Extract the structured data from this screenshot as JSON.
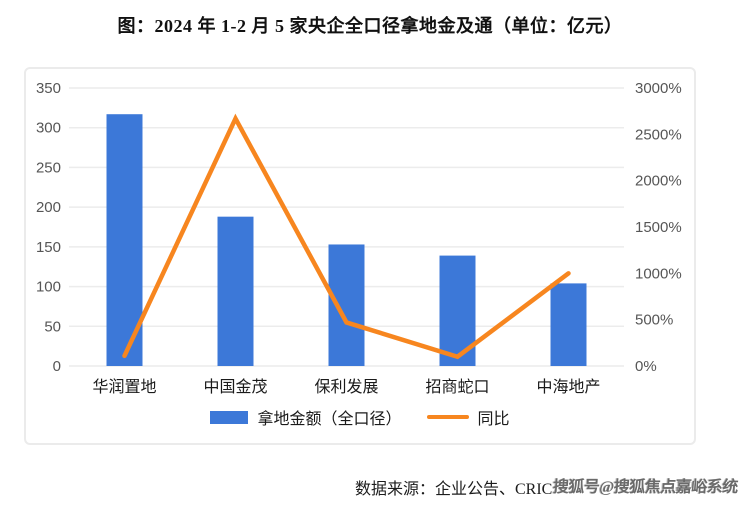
{
  "title": "图：2024 年 1-2 月 5 家央企全口径拿地金及通（单位：亿元）",
  "chart_data": {
    "type": "bar+line",
    "categories": [
      "华润置地",
      "中国金茂",
      "保利发展",
      "招商蛇口",
      "中海地产"
    ],
    "series": [
      {
        "name": "拿地金额（全口径）",
        "type": "bar",
        "axis": "left",
        "values": [
          317,
          188,
          153,
          139,
          104
        ],
        "color": "#3C78D8"
      },
      {
        "name": "同比",
        "type": "line",
        "axis": "right",
        "values": [
          110,
          2670,
          470,
          100,
          1000
        ],
        "color": "#F7861F"
      }
    ],
    "left_axis": {
      "min": 0,
      "max": 350,
      "step": 50,
      "tick_labels": [
        "0",
        "50",
        "100",
        "150",
        "200",
        "250",
        "300",
        "350"
      ]
    },
    "right_axis": {
      "min": 0,
      "max": 3000,
      "step": 500,
      "tick_labels": [
        "0%",
        "500%",
        "1000%",
        "1500%",
        "2000%",
        "2500%",
        "3000%"
      ]
    },
    "grid": true,
    "legend_position": "bottom"
  },
  "legend": {
    "bar_label": "拿地金额（全口径）",
    "line_label": "同比"
  },
  "footer": {
    "source": "数据来源：企业公告、CRIC",
    "watermark": "搜狐号@搜狐焦点嘉峪系统"
  },
  "colors": {
    "bar": "#3C78D8",
    "line": "#F7861F",
    "grid": "#ececec",
    "tick_text": "#565656",
    "category_text": "#1a1a1a",
    "box_border": "#ebebeb"
  }
}
